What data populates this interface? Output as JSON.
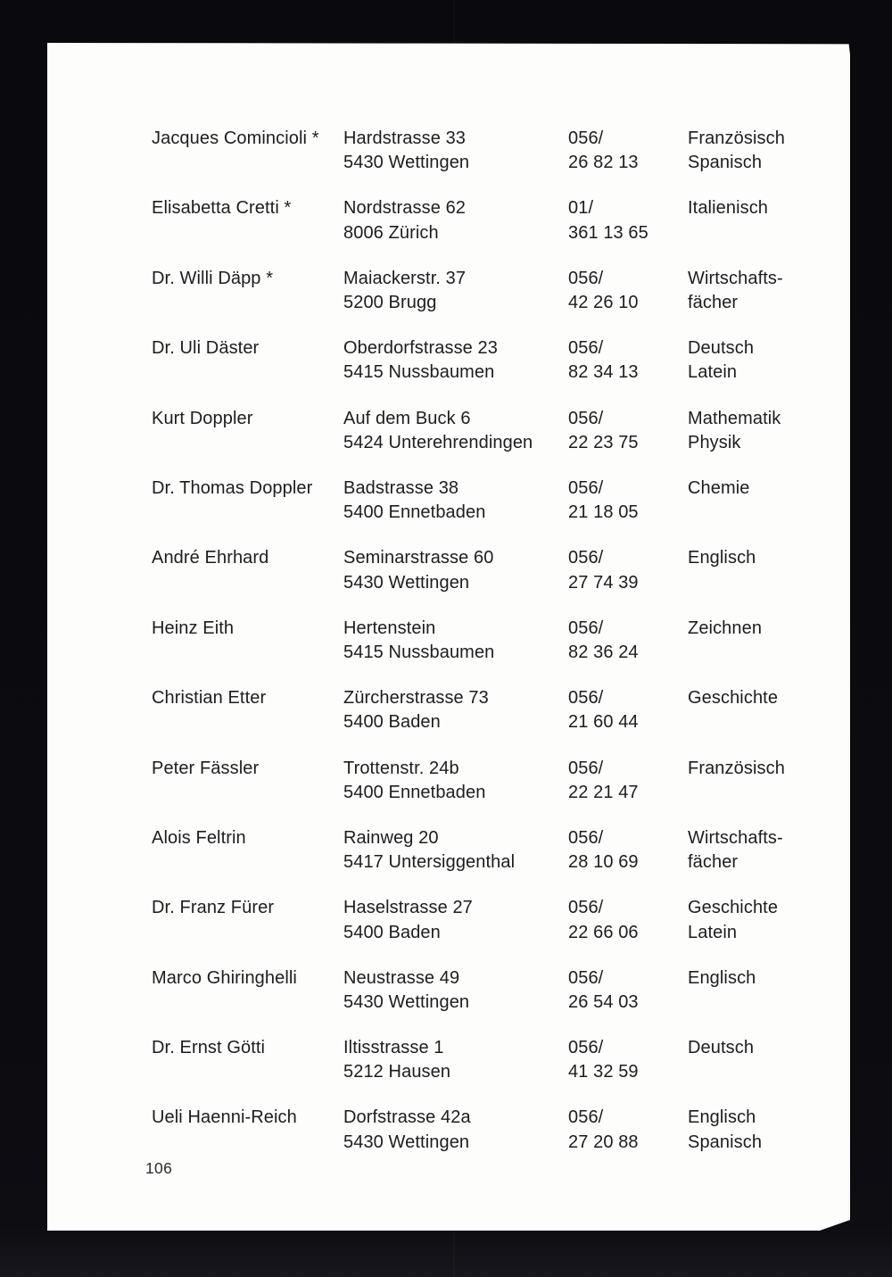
{
  "page": {
    "number": "106"
  },
  "entries": [
    {
      "name": "Jacques Comincioli *",
      "address": [
        "Hardstrasse 33",
        "5430 Wettingen"
      ],
      "phone": [
        "056/",
        "26 82 13"
      ],
      "subjects": [
        "Französisch",
        "Spanisch"
      ]
    },
    {
      "name": "Elisabetta Cretti *",
      "address": [
        "Nordstrasse 62",
        "8006 Zürich"
      ],
      "phone": [
        "01/",
        "361 13 65"
      ],
      "subjects": [
        "Italienisch"
      ]
    },
    {
      "name": "Dr. Willi Däpp *",
      "address": [
        "Maiackerstr. 37",
        "5200 Brugg"
      ],
      "phone": [
        "056/",
        "42 26 10"
      ],
      "subjects": [
        "Wirtschafts-",
        "fächer"
      ]
    },
    {
      "name": "Dr. Uli Däster",
      "address": [
        "Oberdorfstrasse 23",
        "5415 Nussbaumen"
      ],
      "phone": [
        "056/",
        "82 34 13"
      ],
      "subjects": [
        "Deutsch",
        "Latein"
      ]
    },
    {
      "name": "Kurt Doppler",
      "address": [
        "Auf dem Buck 6",
        "5424 Unterehrendingen"
      ],
      "phone": [
        "056/",
        "22 23 75"
      ],
      "subjects": [
        "Mathematik",
        "Physik"
      ]
    },
    {
      "name": "Dr. Thomas Doppler",
      "address": [
        "Badstrasse 38",
        "5400 Ennetbaden"
      ],
      "phone": [
        "056/",
        "21 18 05"
      ],
      "subjects": [
        "Chemie"
      ]
    },
    {
      "name": "André Ehrhard",
      "address": [
        "Seminarstrasse 60",
        "5430 Wettingen"
      ],
      "phone": [
        "056/",
        "27 74 39"
      ],
      "subjects": [
        "Englisch"
      ]
    },
    {
      "name": "Heinz Eith",
      "address": [
        "Hertenstein",
        "5415 Nussbaumen"
      ],
      "phone": [
        "056/",
        "82 36 24"
      ],
      "subjects": [
        "Zeichnen"
      ]
    },
    {
      "name": "Christian Etter",
      "address": [
        "Zürcherstrasse 73",
        "5400 Baden"
      ],
      "phone": [
        "056/",
        "21 60 44"
      ],
      "subjects": [
        "Geschichte"
      ]
    },
    {
      "name": "Peter Fässler",
      "address": [
        "Trottenstr. 24b",
        "5400 Ennetbaden"
      ],
      "phone": [
        "056/",
        "22 21 47"
      ],
      "subjects": [
        "Französisch"
      ]
    },
    {
      "name": "Alois Feltrin",
      "address": [
        "Rainweg 20",
        "5417 Untersiggenthal"
      ],
      "phone": [
        "056/",
        "28 10 69"
      ],
      "subjects": [
        "Wirtschafts-",
        "fächer"
      ]
    },
    {
      "name": "Dr. Franz Fürer",
      "address": [
        "Haselstrasse 27",
        "5400 Baden"
      ],
      "phone": [
        "056/",
        "22 66 06"
      ],
      "subjects": [
        "Geschichte",
        "Latein"
      ]
    },
    {
      "name": "Marco Ghiringhelli",
      "address": [
        "Neustrasse 49",
        "5430 Wettingen"
      ],
      "phone": [
        "056/",
        "26 54 03"
      ],
      "subjects": [
        "Englisch"
      ]
    },
    {
      "name": "Dr. Ernst Götti",
      "address": [
        "Iltisstrasse 1",
        "5212 Hausen"
      ],
      "phone": [
        "056/",
        "41 32 59"
      ],
      "subjects": [
        "Deutsch"
      ]
    },
    {
      "name": "Ueli Haenni-Reich",
      "address": [
        "Dorfstrasse 42a",
        "5430 Wettingen"
      ],
      "phone": [
        "056/",
        "27 20 88"
      ],
      "subjects": [
        "Englisch",
        "Spanisch"
      ]
    }
  ]
}
